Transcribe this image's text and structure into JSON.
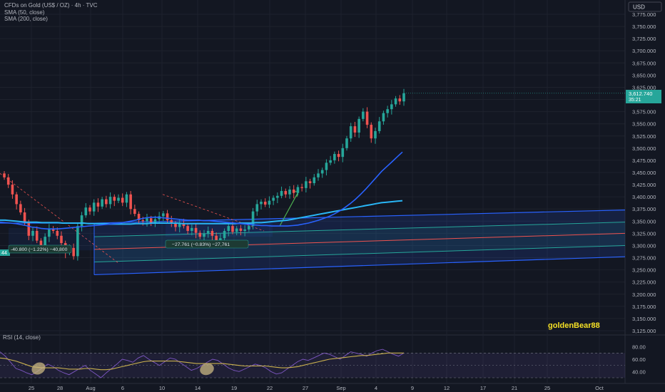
{
  "header": {
    "title": "CFDs on Gold (US$ / OZ) · 4h · TVC",
    "indicator1": "SMA (50, close)",
    "indicator2": "SMA (200, close)",
    "currency": "USD"
  },
  "watermark": "goldenBear88",
  "rsi_label": "RSI (14, close)",
  "price_badge": {
    "price": "3,612.740",
    "countdown": "35:21"
  },
  "left_tag": "44",
  "measures": [
    {
      "text": "-40.800 (−1.22%) −40,800"
    },
    {
      "text": "−27.761 (−0.83%) −27,761"
    }
  ],
  "colors": {
    "background": "#131722",
    "up": "#26a69a",
    "down": "#ef5350",
    "sma50": "#2962ff",
    "sma200": "#29b6f6",
    "channel": "#2962ff",
    "rsi": "#7e57c2",
    "rsi_ma": "#c9b04e",
    "watermark": "#f5e025"
  },
  "chart_data": [
    {
      "type": "candlestick",
      "title": "CFDs on Gold (US$ / OZ) · 4h · TVC",
      "timeframe": "4h",
      "x_ticks": [
        "25",
        "28",
        "Aug",
        "6",
        "10",
        "14",
        "19",
        "22",
        "27",
        "Sep",
        "4",
        "9",
        "12",
        "17",
        "21",
        "25",
        "Oct"
      ],
      "y_ticks": [
        "3,125.000",
        "3,150.000",
        "3,175.000",
        "3,200.000",
        "3,225.000",
        "3,250.000",
        "3,275.000",
        "3,300.000",
        "3,325.000",
        "3,350.000",
        "3,375.000",
        "3,400.000",
        "3,425.000",
        "3,450.000",
        "3,475.000",
        "3,500.000",
        "3,525.000",
        "3,550.000",
        "3,575.000",
        "3,600.000",
        "3,625.000",
        "3,650.000",
        "3,675.000",
        "3,700.000",
        "3,725.000",
        "3,750.000",
        "3,775.000"
      ],
      "ylim": [
        3115,
        3790
      ],
      "last_price": 3612.74,
      "close_series": [
        3440,
        3425,
        3405,
        3385,
        3368,
        3348,
        3320,
        3330,
        3310,
        3300,
        3318,
        3335,
        3330,
        3320,
        3305,
        3285,
        3295,
        3278,
        3340,
        3362,
        3378,
        3370,
        3388,
        3380,
        3395,
        3385,
        3400,
        3392,
        3398,
        3388,
        3405,
        3375,
        3365,
        3352,
        3350,
        3356,
        3345,
        3354,
        3360,
        3366,
        3352,
        3345,
        3338,
        3346,
        3340,
        3330,
        3336,
        3326,
        3318,
        3325,
        3330,
        3320,
        3310,
        3315,
        3330,
        3340,
        3328,
        3335,
        3330,
        3333,
        3340,
        3370,
        3385,
        3390,
        3384,
        3392,
        3398,
        3402,
        3412,
        3405,
        3415,
        3408,
        3420,
        3418,
        3432,
        3428,
        3440,
        3448,
        3455,
        3470,
        3475,
        3488,
        3482,
        3500,
        3520,
        3545,
        3532,
        3560,
        3575,
        3548,
        3520,
        3535,
        3555,
        3572,
        3580,
        3590,
        3602,
        3596,
        3612.74
      ],
      "series": [
        {
          "name": "SMA (50, close)",
          "values": [
            3348,
            3347,
            3346,
            3345,
            3343,
            3341,
            3338,
            3337,
            3335,
            3334,
            3334,
            3334,
            3335,
            3336,
            3337,
            3338,
            3339,
            3340,
            3341,
            3342,
            3343,
            3344,
            3345,
            3346,
            3348,
            3350,
            3352,
            3355,
            3357,
            3358,
            3358,
            3357,
            3356,
            3355,
            3354,
            3353,
            3352,
            3352,
            3352,
            3351,
            3351,
            3350,
            3349,
            3348,
            3347,
            3346,
            3345,
            3344,
            3343,
            3342,
            3341,
            3341,
            3340,
            3340,
            3340,
            3340,
            3341,
            3342,
            3344,
            3346,
            3349,
            3352,
            3356,
            3360,
            3365,
            3371,
            3378,
            3386,
            3395,
            3405,
            3416,
            3428,
            3440,
            3452,
            3462,
            3472,
            3482,
            3492
          ]
        },
        {
          "name": "SMA (200, close)",
          "values": [
            3352,
            3352,
            3351,
            3350,
            3349,
            3348,
            3348,
            3348,
            3347,
            3347,
            3347,
            3347,
            3346,
            3346,
            3346,
            3346,
            3346,
            3345,
            3345,
            3345,
            3345,
            3344,
            3344,
            3344,
            3344,
            3344,
            3345,
            3345,
            3345,
            3346,
            3346,
            3346,
            3346,
            3346,
            3346,
            3345,
            3345,
            3345,
            3345,
            3345,
            3345,
            3345,
            3345,
            3345,
            3345,
            3345,
            3346,
            3346,
            3346,
            3347,
            3347,
            3348,
            3349,
            3350,
            3351,
            3352,
            3354,
            3356,
            3358,
            3360,
            3362,
            3364,
            3366,
            3368,
            3370,
            3372,
            3374,
            3376,
            3378,
            3380,
            3382,
            3384,
            3386,
            3388,
            3389,
            3390,
            3391,
            3392
          ]
        }
      ],
      "channel": {
        "upper_end": 3373,
        "upper_start": 3345,
        "mid_upper_end": 3348,
        "center_end": 3325,
        "mid_lower_end": 3300,
        "lower_end": 3277,
        "lower_start": 3240
      }
    },
    {
      "type": "line",
      "title": "RSI (14, close)",
      "y_ticks": [
        "80.00",
        "60.00",
        "40.00"
      ],
      "ylim": [
        30,
        90
      ],
      "bands": [
        70,
        30
      ],
      "series": [
        {
          "name": "RSI",
          "values": [
            72,
            65,
            55,
            45,
            42,
            38,
            35,
            40,
            46,
            52,
            48,
            42,
            38,
            35,
            40,
            45,
            50,
            42,
            36,
            30,
            38,
            45,
            52,
            60,
            58,
            55,
            62,
            66,
            60,
            55,
            50,
            56,
            62,
            60,
            54,
            48,
            42,
            45,
            50,
            55,
            60,
            58,
            52,
            46,
            42,
            40,
            44,
            48,
            52,
            50,
            46,
            40,
            36,
            38,
            44,
            50,
            56,
            60,
            58,
            62,
            66,
            70,
            68,
            64,
            60,
            66,
            72,
            70,
            68,
            65,
            70,
            74,
            76,
            72,
            68,
            65,
            70
          ]
        },
        {
          "name": "RSI MA",
          "values": [
            62,
            61,
            59,
            57,
            54,
            51,
            48,
            47,
            46,
            46,
            46,
            46,
            45,
            44,
            44,
            44,
            45,
            45,
            44,
            43,
            43,
            44,
            46,
            48,
            50,
            52,
            54,
            56,
            57,
            57,
            57,
            57,
            57,
            57,
            56,
            55,
            54,
            53,
            53,
            53,
            53,
            53,
            53,
            52,
            51,
            50,
            49,
            49,
            49,
            49,
            49,
            48,
            47,
            46,
            46,
            47,
            48,
            50,
            52,
            54,
            56,
            58,
            60,
            61,
            62,
            63,
            64,
            65,
            66,
            66,
            67,
            68,
            69,
            70,
            70,
            70,
            70
          ]
        }
      ]
    }
  ]
}
